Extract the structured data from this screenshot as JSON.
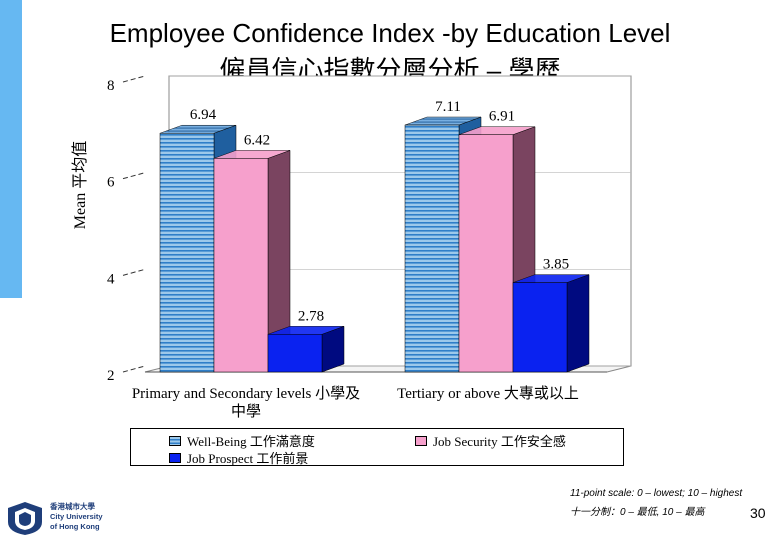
{
  "slide": {
    "title_en": "Employee Confidence Index -by Education Level",
    "title_zh": "僱員信心指數分層分析 – 學歷",
    "footnote_line1": "11-point scale: 0 – lowest; 10 – highest",
    "footnote_line2": "十一分制：0 – 最低, 10 – 最高",
    "page_number": "30",
    "logo": {
      "line1": "香港城市大學",
      "line2": "City University",
      "line3": "of Hong Kong"
    },
    "accent_color": "#66b8f2"
  },
  "chart_data": {
    "type": "bar",
    "title": "",
    "ylabel": "Mean 平均值",
    "xlabel": "",
    "ylim": [
      2,
      8
    ],
    "yticks": [
      2,
      4,
      6,
      8
    ],
    "categories": [
      [
        "Primary and Secondary levels 小學及",
        "中學"
      ],
      [
        "Tertiary or above 大專或以上"
      ]
    ],
    "series": [
      {
        "name": "Well-Being 工作滿意度",
        "values": [
          6.94,
          7.11
        ],
        "color": "#9cc8ea",
        "side_color": "#1f5f9f",
        "pattern": "stripes"
      },
      {
        "name": "Job Security 工作安全感",
        "values": [
          6.42,
          6.91
        ],
        "color": "#f6a0cc",
        "side_color": "#7a4460",
        "pattern": "solid"
      },
      {
        "name": "Job Prospect 工作前景",
        "values": [
          2.78,
          3.85
        ],
        "color": "#0a22f0",
        "side_color": "#000a80",
        "pattern": "solid"
      }
    ],
    "value_labels": [
      [
        "6.94",
        "6.42",
        "2.78"
      ],
      [
        "7.11",
        "6.91",
        "3.85"
      ]
    ],
    "legend_position": "bottom",
    "three_d": true
  }
}
